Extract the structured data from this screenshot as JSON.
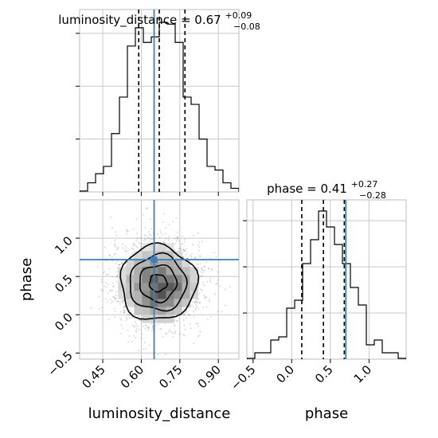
{
  "chart_data": [
    {
      "panel": "luminosity_distance-marginal",
      "type": "histogram",
      "title": {
        "base": "luminosity_distance = 0.67",
        "sup": "+0.09",
        "sub": "−0.08"
      },
      "x": {
        "lim": [
          0.36,
          0.98
        ],
        "ticks": [
          0.45,
          0.6,
          0.75,
          0.9
        ],
        "tick_labels": [],
        "grid": true
      },
      "y_ticks_count": 3,
      "truth": 0.65,
      "quantiles": [
        0.59,
        0.67,
        0.77
      ],
      "hist": {
        "edges_start": 0.36,
        "bin_width": 0.031,
        "heights": [
          0.005,
          0.05,
          0.1,
          0.14,
          0.32,
          0.52,
          0.8,
          0.9,
          0.82,
          0.85,
          0.93,
          0.92,
          0.82,
          0.52,
          0.48,
          0.29,
          0.14,
          0.12,
          0.05,
          0.02
        ]
      },
      "ymax": 1.0
    },
    {
      "panel": "joint",
      "type": "scatter-contour",
      "x": {
        "lim": [
          0.36,
          0.98
        ],
        "ticks": [
          0.45,
          0.6,
          0.75,
          0.9
        ],
        "tick_labels": [
          "0.45",
          "0.60",
          "0.75",
          "0.90"
        ],
        "label": "luminosity_distance"
      },
      "y": {
        "lim": [
          -0.58,
          1.5
        ],
        "ticks": [
          -0.5,
          0.0,
          0.5,
          1.0
        ],
        "tick_labels": [
          "−0.5",
          "0.0",
          "0.5",
          "1.0"
        ],
        "label": "phase"
      },
      "truth": {
        "x": 0.65,
        "y": 0.72
      },
      "center": {
        "x": 0.665,
        "y": 0.415
      },
      "density_sigma": {
        "x": 0.085,
        "y": 0.28
      },
      "contour_levels": [
        0.4,
        0.85,
        1.3,
        1.75
      ],
      "n_points": 1800
    },
    {
      "panel": "phase-marginal",
      "type": "histogram",
      "title": {
        "base": "phase = 0.41",
        "sup": "+0.27",
        "sub": "−0.28"
      },
      "x": {
        "lim": [
          -0.58,
          1.48
        ],
        "ticks": [
          -0.5,
          0.0,
          0.5,
          1.0
        ],
        "tick_labels": [
          "−0.5",
          "0.0",
          "0.5",
          "1.0"
        ],
        "label": "phase",
        "grid": true
      },
      "y_ticks_count": 3,
      "truth": 0.7,
      "quantiles": [
        0.13,
        0.41,
        0.68
      ],
      "hist": {
        "edges_start": -0.58,
        "bin_width": 0.103,
        "heights": [
          0.005,
          0.04,
          0.04,
          0.12,
          0.14,
          0.32,
          0.37,
          0.6,
          0.75,
          0.93,
          0.83,
          0.72,
          0.6,
          0.45,
          0.34,
          0.09,
          0.12,
          0.04,
          0.04,
          0.005
        ]
      },
      "ymax": 1.0
    }
  ]
}
